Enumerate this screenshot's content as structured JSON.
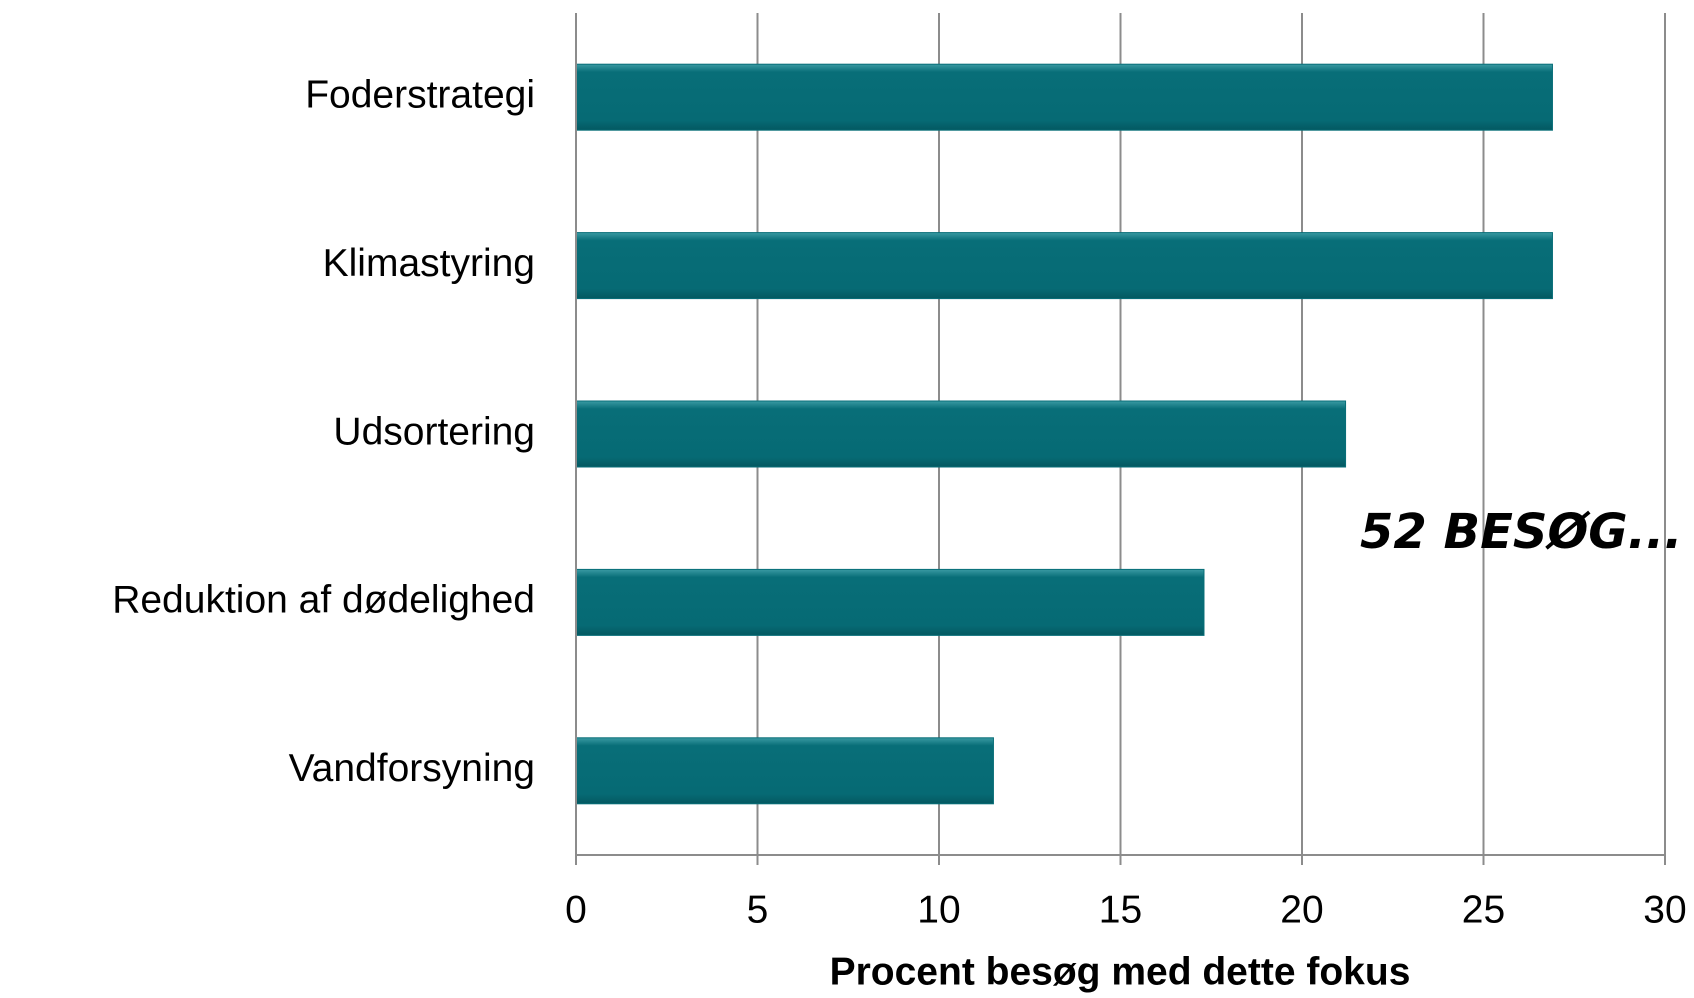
{
  "chart_data": {
    "type": "bar",
    "orientation": "horizontal",
    "categories": [
      "Foderstrategi",
      "Klimastyring",
      "Udsortering",
      "Reduktion af dødelighed",
      "Vandforsyning"
    ],
    "values": [
      26.9,
      26.9,
      21.2,
      17.3,
      11.5
    ],
    "color": "#086e78",
    "xlabel": "Procent besøg med dette fokus",
    "annotation": "52 BESØG...",
    "xlim": [
      0,
      30
    ],
    "xticks": [
      0,
      5,
      10,
      15,
      20,
      25,
      30
    ],
    "grid": true
  }
}
